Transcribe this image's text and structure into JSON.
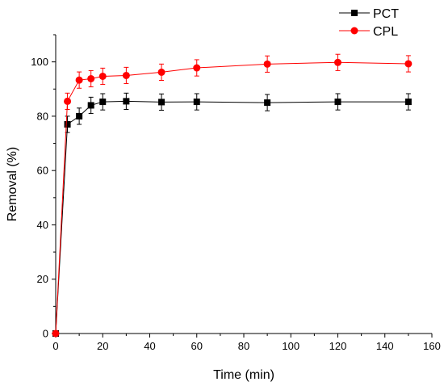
{
  "chart_data": {
    "type": "line",
    "title": "",
    "xlabel": "Time (min)",
    "ylabel": "Removal (%)",
    "xlim": [
      0,
      160
    ],
    "ylim": [
      0,
      110
    ],
    "xticks": [
      0,
      20,
      40,
      60,
      80,
      100,
      120,
      140,
      160
    ],
    "yticks": [
      0,
      20,
      40,
      60,
      80,
      100
    ],
    "grid": false,
    "legend_position": "top-right",
    "x": [
      0,
      5,
      10,
      15,
      20,
      30,
      45,
      60,
      90,
      120,
      150
    ],
    "series": [
      {
        "name": "PCT",
        "color": "#000000",
        "marker": "square",
        "values": [
          0,
          77,
          80,
          84,
          85.3,
          85.5,
          85.2,
          85.3,
          85,
          85.3,
          85.3
        ],
        "errors": [
          0,
          3,
          3,
          3,
          3,
          3,
          3,
          3,
          3,
          3,
          3
        ]
      },
      {
        "name": "CPL",
        "color": "#ff0000",
        "marker": "circle",
        "values": [
          0,
          85.5,
          93.3,
          93.8,
          94.7,
          95,
          96.2,
          97.8,
          99.2,
          99.8,
          99.3
        ],
        "errors": [
          0,
          3,
          3,
          3,
          3,
          3,
          3,
          3,
          3,
          3,
          3
        ]
      }
    ]
  }
}
